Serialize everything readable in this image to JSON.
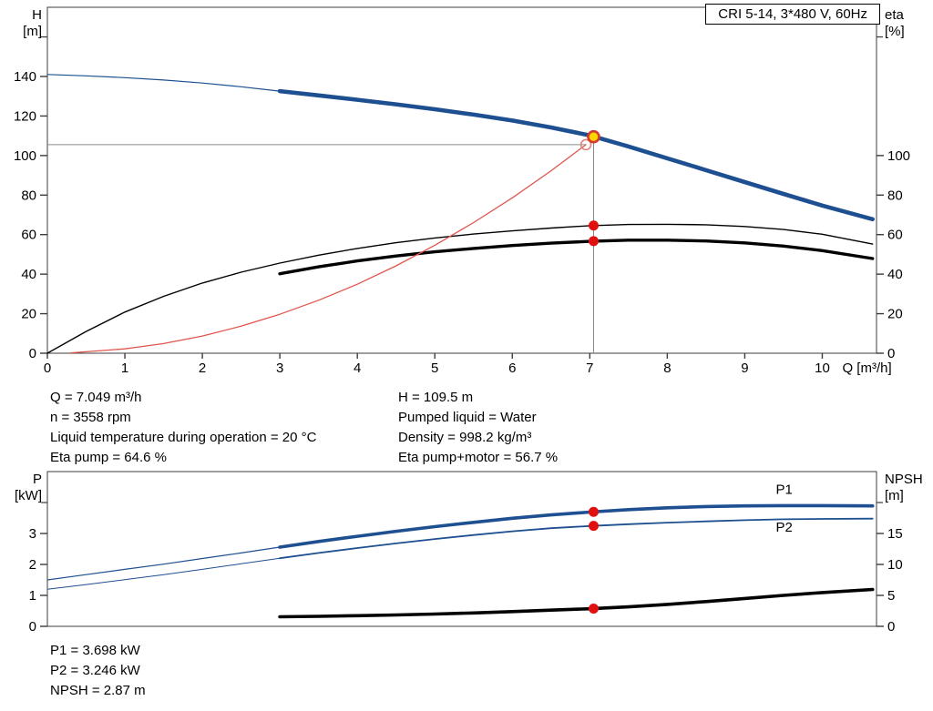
{
  "title_box": {
    "label": "CRI 5-14, 3*480 V, 60Hz"
  },
  "info_top": {
    "left": [
      "Q = 7.049 m³/h",
      "n = 3558 rpm",
      "Liquid temperature during operation = 20 °C",
      "Eta pump = 64.6 %"
    ],
    "right": [
      "H = 109.5 m",
      "Pumped liquid = Water",
      "Density = 998.2 kg/m³",
      "Eta pump+motor = 56.7 %"
    ]
  },
  "info_bottom": [
    "P1 = 3.698 kW",
    "P2 = 3.246 kW",
    "NPSH = 2.87 m"
  ],
  "colors": {
    "curve_blue": "#1d4f91",
    "curve_black": "#000000",
    "system_red": "#e0564e",
    "marker_red": "#e01010",
    "marker_yellow": "#ffd400",
    "marker_ring_red": "#d23b2e",
    "open_circle_red": "#e2837d",
    "crosshair_gray": "#8a8a8a",
    "frame": "#3c3c3c"
  },
  "chart_data": [
    {
      "type": "line",
      "title": "CRI 5-14, 3*480 V, 60Hz",
      "xlabel": "Q [m³/h]",
      "ylabel_left": [
        "H",
        "[m]"
      ],
      "ylabel_right": [
        "eta",
        "[%]"
      ],
      "xlim": [
        0,
        10.7
      ],
      "ylim_left": [
        0,
        175
      ],
      "ylim_right": [
        0,
        175
      ],
      "x_ticks": [
        0,
        1,
        2,
        3,
        4,
        5,
        6,
        7,
        8,
        9,
        10
      ],
      "y_ticks_left": [
        0,
        20,
        40,
        60,
        80,
        100,
        120,
        140
      ],
      "y_ticks_left_minor": [
        160
      ],
      "y_ticks_right": [
        0,
        20,
        40,
        60,
        80,
        100
      ],
      "y_ticks_right_minor": [
        160
      ],
      "series": [
        {
          "name": "eta-pump",
          "color": "#000000",
          "width": 1.4,
          "points": [
            [
              0,
              0
            ],
            [
              0.5,
              11
            ],
            [
              1,
              20.8
            ],
            [
              1.5,
              28.8
            ],
            [
              2,
              35.5
            ],
            [
              2.5,
              41
            ],
            [
              3,
              45.6
            ],
            [
              3.5,
              49.6
            ],
            [
              4,
              53
            ],
            [
              4.5,
              55.9
            ],
            [
              5,
              58.3
            ],
            [
              5.5,
              60.3
            ],
            [
              6,
              61.9
            ],
            [
              6.5,
              63.3
            ],
            [
              7,
              64.5
            ],
            [
              7.5,
              65.1
            ],
            [
              8,
              65.2
            ],
            [
              8.5,
              65
            ],
            [
              9,
              64.1
            ],
            [
              9.5,
              62.6
            ],
            [
              10,
              60.2
            ],
            [
              10.65,
              55.2
            ]
          ]
        },
        {
          "name": "eta-pump-motor",
          "color": "#000000",
          "width": 3.4,
          "points": [
            [
              3,
              40.2
            ],
            [
              3.5,
              43.7
            ],
            [
              4,
              46.7
            ],
            [
              4.5,
              49.2
            ],
            [
              5,
              51.3
            ],
            [
              5.5,
              53
            ],
            [
              6,
              54.5
            ],
            [
              6.5,
              55.7
            ],
            [
              7,
              56.6
            ],
            [
              7.5,
              57.2
            ],
            [
              8,
              57.2
            ],
            [
              8.5,
              56.8
            ],
            [
              9,
              55.8
            ],
            [
              9.5,
              54.2
            ],
            [
              10,
              51.9
            ],
            [
              10.65,
              47.9
            ]
          ]
        },
        {
          "name": "system-curve",
          "color": "#e0564e",
          "width": 1.3,
          "points": [
            [
              0.3,
              0.2
            ],
            [
              1,
              2.2
            ],
            [
              1.5,
              4.9
            ],
            [
              2,
              8.7
            ],
            [
              2.5,
              13.7
            ],
            [
              3,
              19.7
            ],
            [
              3.5,
              26.8
            ],
            [
              4,
              34.9
            ],
            [
              4.5,
              44.2
            ],
            [
              5,
              54.6
            ],
            [
              5.5,
              66.1
            ],
            [
              6,
              78.6
            ],
            [
              6.5,
              92.3
            ],
            [
              6.95,
              105.5
            ]
          ]
        },
        {
          "name": "qh-lead",
          "color": "#1d4f91",
          "width": 1.2,
          "points": [
            [
              0,
              141
            ],
            [
              0.5,
              140.3
            ],
            [
              1,
              139.4
            ],
            [
              1.5,
              138.2
            ],
            [
              2,
              136.7
            ],
            [
              2.5,
              134.8
            ],
            [
              3,
              132.6
            ]
          ]
        },
        {
          "name": "qh",
          "color": "#1d4f91",
          "width": 4.6,
          "points": [
            [
              3,
              132.6
            ],
            [
              3.5,
              130.4
            ],
            [
              4,
              128.2
            ],
            [
              4.5,
              125.9
            ],
            [
              5,
              123.4
            ],
            [
              5.5,
              120.7
            ],
            [
              6,
              117.7
            ],
            [
              6.5,
              114.2
            ],
            [
              7,
              110.2
            ],
            [
              7.5,
              104.6
            ],
            [
              8,
              98.6
            ],
            [
              8.5,
              92.6
            ],
            [
              9,
              86.6
            ],
            [
              9.5,
              80.6
            ],
            [
              10,
              74.7
            ],
            [
              10.65,
              67.8
            ]
          ]
        }
      ],
      "crosshair": {
        "h_value": 105.5,
        "h_to": 6.95,
        "v_value": 7.049,
        "v_to": 109.5
      },
      "markers": [
        {
          "name": "duty-point-circle",
          "style": "open",
          "x": 6.95,
          "y": 105.5
        },
        {
          "name": "operating-point",
          "style": "target",
          "x": 7.049,
          "y": 109.5,
          "interactable": true
        },
        {
          "name": "eta-pump-duty-dot",
          "style": "dot",
          "x": 7.049,
          "y": 64.6
        },
        {
          "name": "eta-pump-motor-duty-dot",
          "style": "dot",
          "x": 7.049,
          "y": 56.7
        }
      ]
    },
    {
      "type": "line",
      "title": "",
      "xlabel": "",
      "ylabel_left": [
        "P",
        "[kW]"
      ],
      "ylabel_right": [
        "NPSH",
        "[m]"
      ],
      "xlim": [
        0,
        10.7
      ],
      "ylim_left": [
        0,
        5
      ],
      "ylim_right": [
        0,
        25
      ],
      "x_ticks": [],
      "y_ticks_left": [
        0,
        1,
        2,
        3
      ],
      "y_ticks_left_minor": [
        4
      ],
      "y_ticks_right": [
        0,
        5,
        10,
        15
      ],
      "y_ticks_right_minor": [
        20
      ],
      "series": [
        {
          "name": "p2-lead",
          "color": "#1d4f91",
          "width": 1.0,
          "points": [
            [
              0,
              1.2
            ],
            [
              0.5,
              1.35
            ],
            [
              1,
              1.51
            ],
            [
              1.5,
              1.67
            ],
            [
              2,
              1.84
            ],
            [
              2.5,
              2.02
            ],
            [
              3,
              2.2
            ]
          ]
        },
        {
          "name": "p2",
          "color": "#1d4f91",
          "width": 1.8,
          "points": [
            [
              3,
              2.2
            ],
            [
              3.5,
              2.37
            ],
            [
              4,
              2.53
            ],
            [
              4.5,
              2.68
            ],
            [
              5,
              2.82
            ],
            [
              5.5,
              2.95
            ],
            [
              6,
              3.07
            ],
            [
              6.5,
              3.17
            ],
            [
              7,
              3.24
            ],
            [
              7.5,
              3.3
            ],
            [
              8,
              3.35
            ],
            [
              8.5,
              3.39
            ],
            [
              9,
              3.43
            ],
            [
              9.5,
              3.46
            ],
            [
              10,
              3.47
            ],
            [
              10.65,
              3.48
            ]
          ]
        },
        {
          "name": "p1-lead",
          "color": "#1d4f91",
          "width": 1.2,
          "points": [
            [
              0,
              1.5
            ],
            [
              0.5,
              1.67
            ],
            [
              1,
              1.84
            ],
            [
              1.5,
              2.01
            ],
            [
              2,
              2.19
            ],
            [
              2.5,
              2.37
            ],
            [
              3,
              2.56
            ]
          ]
        },
        {
          "name": "p1",
          "color": "#1d4f91",
          "width": 3.6,
          "points": [
            [
              3,
              2.56
            ],
            [
              3.5,
              2.74
            ],
            [
              4,
              2.91
            ],
            [
              4.5,
              3.07
            ],
            [
              5,
              3.22
            ],
            [
              5.5,
              3.36
            ],
            [
              6,
              3.49
            ],
            [
              6.5,
              3.6
            ],
            [
              7,
              3.69
            ],
            [
              7.5,
              3.77
            ],
            [
              8,
              3.83
            ],
            [
              8.5,
              3.87
            ],
            [
              9,
              3.89
            ],
            [
              9.5,
              3.9
            ],
            [
              10,
              3.9
            ],
            [
              10.65,
              3.89
            ]
          ]
        },
        {
          "name": "npsh",
          "color": "#000000",
          "width": 3.6,
          "axis": "right",
          "points": [
            [
              3,
              1.55
            ],
            [
              3.5,
              1.62
            ],
            [
              4,
              1.72
            ],
            [
              4.5,
              1.84
            ],
            [
              5,
              1.98
            ],
            [
              5.5,
              2.16
            ],
            [
              6,
              2.38
            ],
            [
              6.5,
              2.62
            ],
            [
              7,
              2.84
            ],
            [
              7.5,
              3.15
            ],
            [
              8,
              3.55
            ],
            [
              8.5,
              4.0
            ],
            [
              9,
              4.5
            ],
            [
              9.5,
              5.0
            ],
            [
              10,
              5.45
            ],
            [
              10.65,
              5.95
            ]
          ]
        }
      ],
      "labels": [
        {
          "name": "p1-curve-label",
          "text": "P1",
          "x": 9.4,
          "y": 4.28,
          "color": "#1d4f91"
        },
        {
          "name": "p2-curve-label",
          "text": "P2",
          "x": 9.4,
          "y": 3.06,
          "color": "#1d4f91"
        }
      ],
      "markers": [
        {
          "name": "p1-duty-dot",
          "style": "dot",
          "x": 7.049,
          "y": 3.698
        },
        {
          "name": "p2-duty-dot",
          "style": "dot",
          "x": 7.049,
          "y": 3.246
        },
        {
          "name": "npsh-duty-dot",
          "style": "dot",
          "x": 7.049,
          "y": 2.87,
          "axis": "right"
        }
      ]
    }
  ]
}
